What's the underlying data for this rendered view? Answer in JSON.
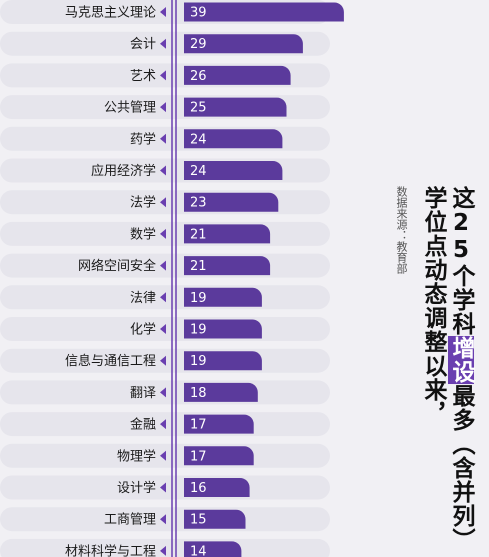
{
  "chart_data": {
    "type": "bar",
    "orientation": "horizontal",
    "categories": [
      "马克思主义理论",
      "会计",
      "艺术",
      "公共管理",
      "药学",
      "应用经济学",
      "法学",
      "数学",
      "网络空间安全",
      "法律",
      "化学",
      "信息与通信工程",
      "翻译",
      "金融",
      "物理学",
      "设计学",
      "工商管理",
      "材料科学与工程"
    ],
    "values": [
      39,
      29,
      26,
      25,
      24,
      24,
      23,
      21,
      21,
      19,
      19,
      19,
      18,
      17,
      17,
      16,
      15,
      14
    ],
    "title_part1_a": "这25个学科",
    "title_part1_highlight": "增设",
    "title_part1_b": "最多（含并列）",
    "title_part2": "学位点动态调整以来，",
    "source": "数据来源：教育部",
    "bar_color": "#5b3a9c",
    "axis_color": "#6a3fb0",
    "highlight_color": "#6a3fb0"
  }
}
